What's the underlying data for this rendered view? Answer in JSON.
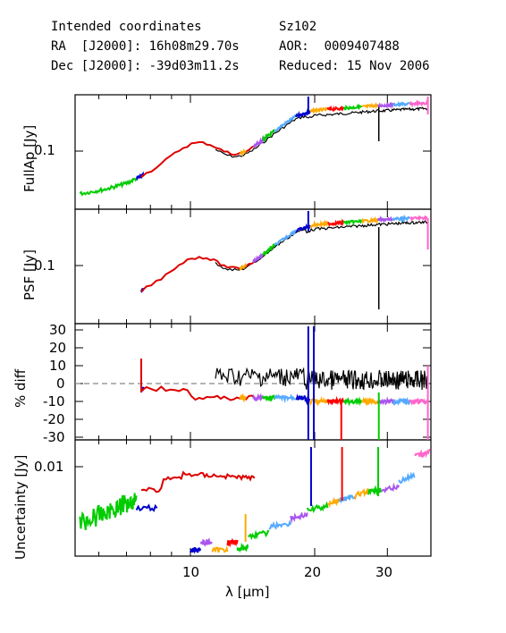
{
  "header": {
    "left": [
      "Intended coordinates",
      "RA  [J2000]: 16h08m29.70s",
      "Dec [J2000]: -39d03m11.2s"
    ],
    "right": [
      "Sz102",
      "AOR:  0009407488",
      "Reduced: 15 Nov 2006"
    ]
  },
  "colors": {
    "module_colors": [
      "#00cc00",
      "#0000cc",
      "#dd0000",
      "#aa55ee",
      "#ffaa00",
      "#00cc00",
      "#ff0000",
      "#55aaff",
      "#ff66cc"
    ],
    "measured": "#000000",
    "zero_line": "#888888"
  },
  "chart_data": [
    {
      "type": "line",
      "panel": "top",
      "ylabel": "FullAp [Jy]",
      "yscale": "log",
      "xscale": "log",
      "yticks": [
        "0.1"
      ],
      "ylim": [
        0.042,
        0.27
      ],
      "xlim": [
        5.4,
        38
      ],
      "description_series": [
        {
          "name": "",
          "x": [
            5.4,
            6.2,
            7.0,
            7.6,
            8.0,
            8.5,
            9.0,
            9.5,
            10.0,
            10.5,
            11.0,
            11.5,
            12.0,
            12.5,
            13.0,
            13.5,
            14.0,
            14.5,
            15.0,
            16.0,
            17.0,
            18.0,
            19.0,
            20.0,
            22.0,
            24.0,
            26.0,
            28.0,
            30.0,
            33.0,
            36.0,
            38.0
          ],
          "y": [
            0.054,
            0.058,
            0.064,
            0.072,
            0.078,
            0.088,
            0.1,
            0.112,
            0.121,
            0.124,
            0.122,
            0.116,
            0.108,
            0.104,
            0.103,
            0.106,
            0.112,
            0.12,
            0.13,
            0.15,
            0.17,
            0.19,
            0.2,
            0.21,
            0.214,
            0.218,
            0.222,
            0.226,
            0.228,
            0.232,
            0.234,
            0.236
          ]
        }
      ]
    },
    {
      "type": "line",
      "panel": "psf",
      "ylabel": "PSF [Jy]",
      "yscale": "log",
      "yticks": [
        "0.1"
      ],
      "ylim": [
        0.042,
        0.27
      ],
      "description_series": [
        {
          "name": "",
          "x": [
            7.6,
            8.0,
            8.5,
            9.0,
            9.5,
            10.0,
            10.5,
            11.0,
            11.5,
            12.0,
            12.5,
            13.0,
            13.5,
            14.0,
            14.5,
            15.0,
            16.0,
            17.0,
            18.0,
            19.0,
            20.0,
            22.0,
            24.0,
            26.0,
            28.0,
            30.0,
            33.0,
            36.0,
            38.0
          ],
          "y": [
            0.072,
            0.078,
            0.088,
            0.1,
            0.112,
            0.121,
            0.124,
            0.122,
            0.116,
            0.108,
            0.104,
            0.103,
            0.106,
            0.112,
            0.12,
            0.13,
            0.15,
            0.17,
            0.19,
            0.2,
            0.21,
            0.214,
            0.218,
            0.222,
            0.226,
            0.228,
            0.232,
            0.234,
            0.236
          ]
        }
      ]
    },
    {
      "type": "line",
      "panel": "diff",
      "ylabel": "% diff",
      "yticks": [
        "30",
        "20",
        "10",
        "0",
        "-10",
        "-20",
        "-30"
      ],
      "ylim": [
        -33,
        32
      ],
      "zero_line": true
    },
    {
      "type": "line",
      "panel": "uncertainty",
      "ylabel": "Uncertainty [Jy]",
      "yscale": "log",
      "yticks": [
        "0.01"
      ],
      "xticks": [
        "10",
        "20",
        "30"
      ],
      "xlabel": "λ [μm]"
    }
  ]
}
